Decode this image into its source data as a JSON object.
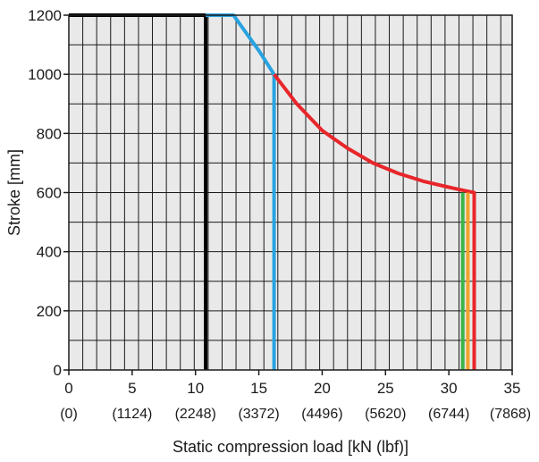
{
  "chart_data": {
    "type": "line",
    "xlabel": "Static compression load [kN (lbf)]",
    "ylabel": "Stroke [mm]",
    "xlim": [
      0,
      35
    ],
    "ylim": [
      0,
      1200
    ],
    "x_ticks": [
      {
        "value": 0,
        "label": "0",
        "sub": "(0)"
      },
      {
        "value": 5,
        "label": "5",
        "sub": "(1124)"
      },
      {
        "value": 10,
        "label": "10",
        "sub": "(2248)"
      },
      {
        "value": 15,
        "label": "15",
        "sub": "(3372)"
      },
      {
        "value": 20,
        "label": "20",
        "sub": "(4496)"
      },
      {
        "value": 25,
        "label": "25",
        "sub": "(5620)"
      },
      {
        "value": 30,
        "label": "30",
        "sub": "(6744)"
      },
      {
        "value": 35,
        "label": "35",
        "sub": "(7868)"
      }
    ],
    "y_ticks": [
      {
        "value": 0,
        "label": "0"
      },
      {
        "value": 200,
        "label": "200"
      },
      {
        "value": 400,
        "label": "400"
      },
      {
        "value": 600,
        "label": "600"
      },
      {
        "value": 800,
        "label": "800"
      },
      {
        "value": 1000,
        "label": "1000"
      },
      {
        "value": 1200,
        "label": "1200"
      }
    ],
    "grid": true,
    "grid_minor": {
      "x_step": 1.1,
      "y_step": 100
    },
    "series": [
      {
        "color": "#000000",
        "width": 4,
        "points": [
          [
            0,
            1200
          ],
          [
            10.8,
            1200
          ],
          [
            10.8,
            0
          ]
        ]
      },
      {
        "color": "#29a3e0",
        "width": 4,
        "points": [
          [
            10.8,
            1200
          ],
          [
            13.0,
            1200
          ],
          [
            15.0,
            1080
          ],
          [
            16.2,
            1000
          ],
          [
            16.2,
            0
          ]
        ]
      },
      {
        "color": "#e8262a",
        "width": 4,
        "points": [
          [
            16.2,
            1000
          ],
          [
            18.0,
            900
          ],
          [
            20.0,
            810
          ],
          [
            22.0,
            750
          ],
          [
            24.0,
            700
          ],
          [
            26.0,
            665
          ],
          [
            28.0,
            638
          ],
          [
            30.0,
            618
          ],
          [
            31.4,
            605
          ],
          [
            32.0,
            600
          ],
          [
            32.0,
            0
          ]
        ]
      },
      {
        "color": "#3bb54a",
        "width": 4,
        "points": [
          [
            31.1,
            600
          ],
          [
            31.1,
            0
          ]
        ]
      },
      {
        "color": "#f2a22b",
        "width": 4,
        "points": [
          [
            31.5,
            600
          ],
          [
            31.5,
            0
          ]
        ]
      }
    ]
  }
}
